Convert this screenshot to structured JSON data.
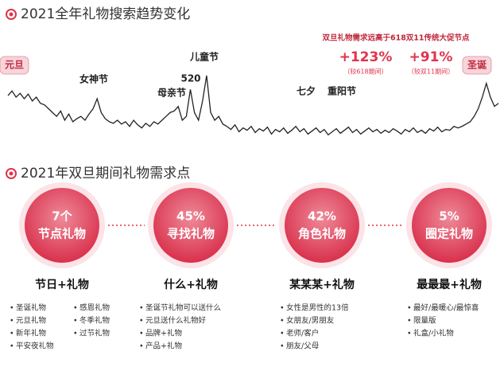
{
  "chart_data": {
    "type": "line",
    "title": "2021全年礼物搜索趋势变化",
    "color": "#222222",
    "values": [
      62,
      68,
      60,
      65,
      58,
      64,
      55,
      60,
      52,
      50,
      45,
      40,
      35,
      42,
      30,
      38,
      28,
      32,
      35,
      30,
      38,
      45,
      58,
      40,
      32,
      28,
      26,
      30,
      25,
      28,
      22,
      30,
      24,
      20,
      26,
      22,
      28,
      25,
      30,
      35,
      40,
      42,
      48,
      30,
      35,
      70,
      40,
      30,
      55,
      88,
      40,
      30,
      35,
      25,
      22,
      18,
      24,
      15,
      20,
      17,
      22,
      14,
      19,
      16,
      21,
      12,
      18,
      15,
      20,
      13,
      17,
      22,
      15,
      19,
      12,
      16,
      20,
      14,
      18,
      11,
      15,
      19,
      13,
      17,
      21,
      14,
      18,
      12,
      16,
      20,
      15,
      18,
      13,
      17,
      14,
      19,
      16,
      12,
      18,
      15,
      20,
      14,
      17,
      13,
      19,
      16,
      21,
      15,
      18,
      17,
      22,
      20,
      22,
      25,
      28,
      35,
      45,
      60,
      78,
      60,
      48,
      52
    ],
    "annotations": [
      "元旦",
      "女神节",
      "母亲节",
      "520",
      "儿童节",
      "七夕",
      "重阳节",
      "圣诞"
    ],
    "headline": "双旦礼物需求远高于618双11传统大促节点",
    "callouts": [
      {
        "value": "+123%",
        "note": "（较618期间）"
      },
      {
        "value": "+91%",
        "note": "（较双11期间）"
      }
    ]
  },
  "section": {
    "title": "2021年双旦期间礼物需求点",
    "columns": [
      {
        "top": "7个",
        "name": "节点礼物",
        "heading": "节日+礼物",
        "items": [
          "圣诞礼物",
          "元旦礼物",
          "新年礼物",
          "平安夜礼物",
          "感恩礼物",
          "冬季礼物",
          "过节礼物"
        ]
      },
      {
        "top": "45%",
        "name": "寻找礼物",
        "heading": "什么+礼物",
        "items": [
          "圣诞节礼物可以送什么",
          "元旦送什么礼物好",
          "品牌+礼物",
          "产品+礼物"
        ]
      },
      {
        "top": "42%",
        "name": "角色礼物",
        "heading": "某某某+礼物",
        "items": [
          "女性是男性的13倍",
          "女朋友/男朋友",
          "老师/客户",
          "朋友/父母"
        ]
      },
      {
        "top": "5%",
        "name": "圈定礼物",
        "heading": "最最最+礼物",
        "items": [
          "最好/最暖心/最惊喜",
          "限量版",
          "礼盒/小礼物"
        ]
      }
    ]
  }
}
